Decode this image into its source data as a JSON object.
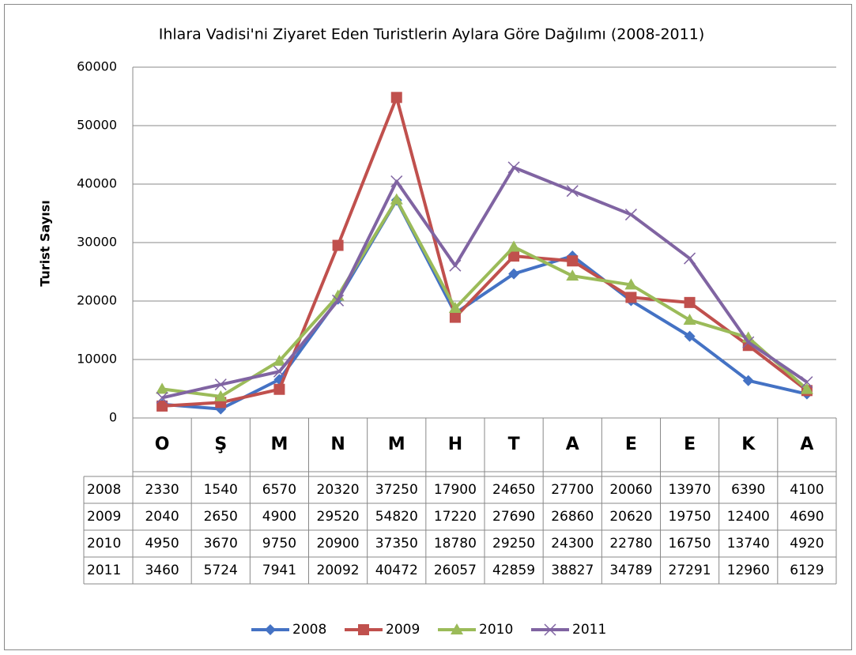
{
  "chart_data": {
    "type": "line",
    "title": "Ihlara Vadisi'ni Ziyaret Eden Turistlerin Aylara Göre Dağılımı (2008-2011)",
    "y_label": "Turist Sayısı",
    "categories": [
      "O",
      "Ş",
      "M",
      "N",
      "M",
      "H",
      "T",
      "A",
      "E",
      "E",
      "K",
      "A"
    ],
    "series": [
      {
        "name": "2008",
        "color": "#4472c4",
        "marker": "diamond",
        "values": [
          2330,
          1540,
          6570,
          20320,
          37250,
          17900,
          24650,
          27700,
          20060,
          13970,
          6390,
          4100
        ]
      },
      {
        "name": "2009",
        "color": "#c0504d",
        "marker": "square",
        "values": [
          2040,
          2650,
          4900,
          29520,
          54820,
          17220,
          27690,
          26860,
          20620,
          19750,
          12400,
          4690
        ]
      },
      {
        "name": "2010",
        "color": "#9bbb59",
        "marker": "triangle",
        "values": [
          4950,
          3670,
          9750,
          20900,
          37350,
          18780,
          29250,
          24300,
          22780,
          16750,
          13740,
          4920
        ]
      },
      {
        "name": "2011",
        "color": "#8064a2",
        "marker": "x",
        "values": [
          3460,
          5724,
          7941,
          20092,
          40472,
          26057,
          42859,
          38827,
          34789,
          27291,
          12960,
          6129
        ]
      }
    ],
    "ylim": [
      0,
      60000
    ],
    "yticks": [
      0,
      10000,
      20000,
      30000,
      40000,
      50000,
      60000
    ],
    "grid": true,
    "legend": "bottom",
    "data_table": true
  }
}
